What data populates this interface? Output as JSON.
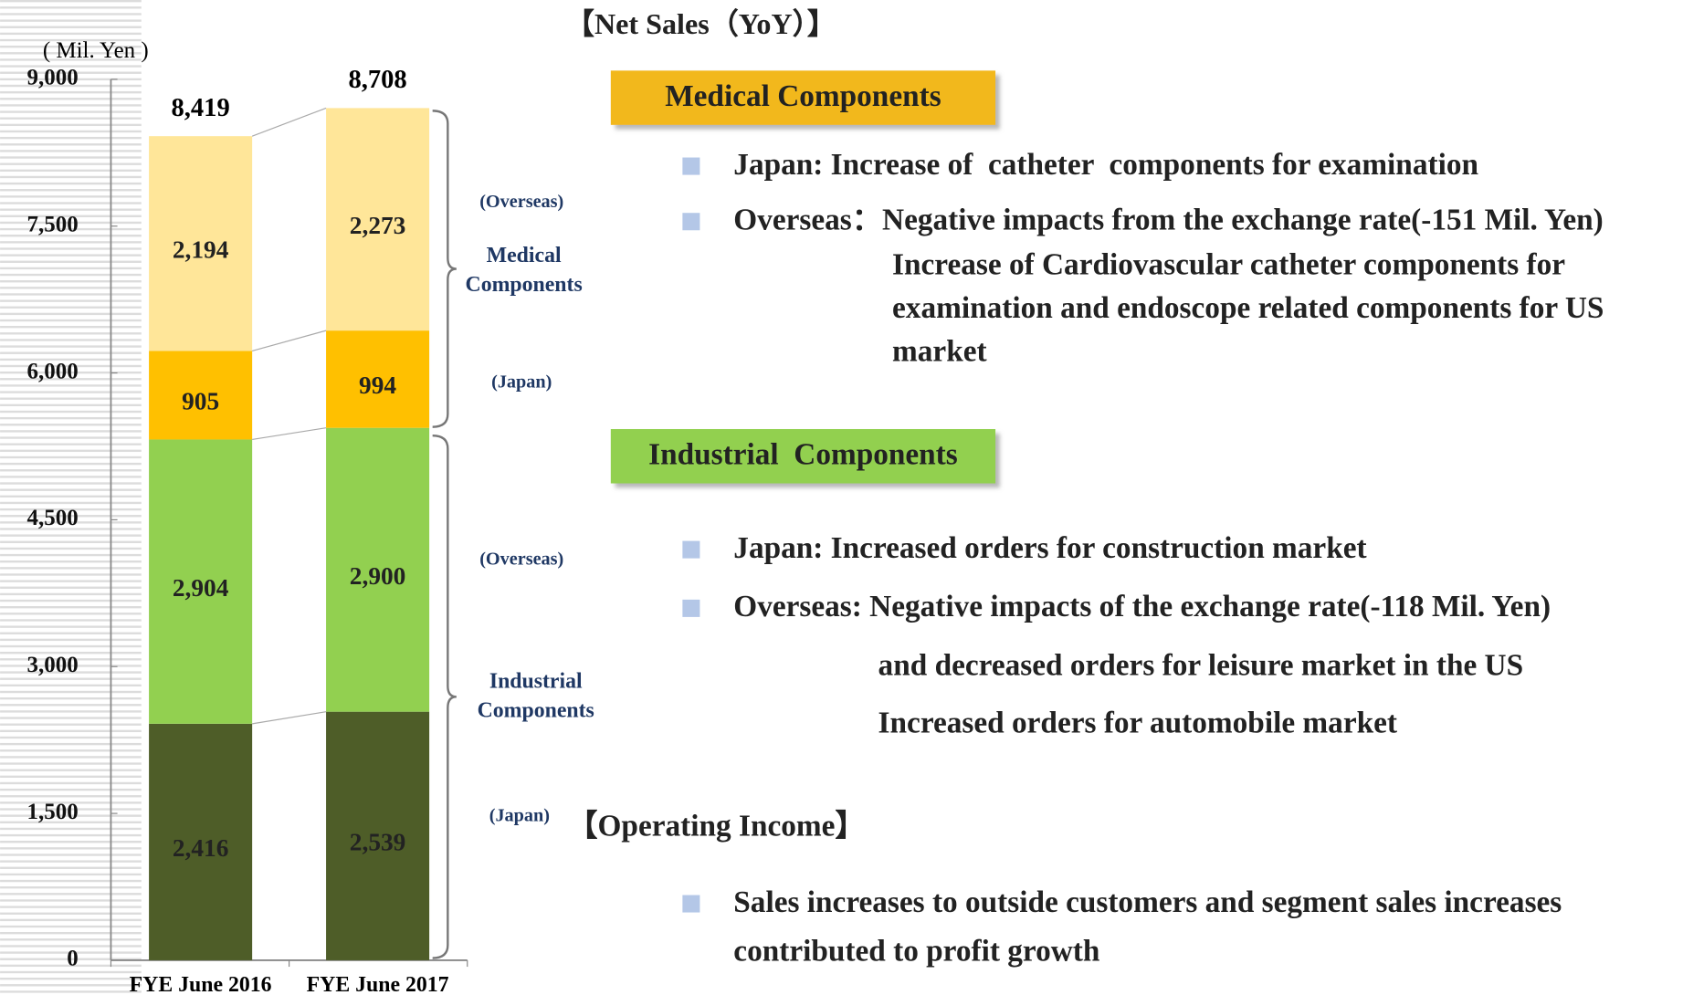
{
  "chart_data": {
    "type": "stacked-bar",
    "unit_label": "( Mil. Yen )",
    "categories": [
      "FYE June 2016",
      "FYE June 2017"
    ],
    "series": [
      {
        "name": "(Japan)",
        "color": "#4e5d28",
        "values": [
          2416,
          2539
        ],
        "value_labels": [
          "2,416",
          "2,539"
        ]
      },
      {
        "name": "(Overseas)",
        "color": "#92d050",
        "values": [
          2904,
          2900
        ],
        "value_labels": [
          "2,904",
          "2,900"
        ]
      },
      {
        "name": "(Japan)",
        "color": "#ffc000",
        "values": [
          905,
          994
        ],
        "value_labels": [
          "905",
          "994"
        ]
      },
      {
        "name": "(Overseas)",
        "color": "#ffe699",
        "values": [
          2194,
          2273
        ],
        "value_labels": [
          "2,194",
          "2,273"
        ]
      }
    ],
    "totals": {
      "values": [
        8419,
        8708
      ],
      "value_labels": [
        "8,419",
        "8,708"
      ]
    },
    "groups": [
      "Industrial Components",
      "Medical Components"
    ],
    "ylim": [
      0,
      9000
    ],
    "yticks": [
      0,
      {
        "value": 1500,
        "label": "1,500"
      },
      {
        "value": 3000,
        "label": "3,000"
      },
      {
        "value": 4500,
        "label": "4,500"
      },
      {
        "value": 6000,
        "label": "6,000"
      },
      {
        "value": 7500,
        "label": "7,500"
      },
      {
        "value": 9000,
        "label": "9,000"
      }
    ]
  },
  "notes": {
    "title": "【Net Sales（YoY）】",
    "sections": [
      {
        "heading": "Medical Components",
        "bullets": [
          [
            "Japan: Increase of  catheter  components for examination"
          ],
          [
            "Overseas：Negative impacts from the exchange rate(-151 Mil. Yen)",
            "Increase of Cardiovascular catheter components for",
            "examination and endoscope related components for US",
            "market"
          ]
        ]
      },
      {
        "heading": "Industrial  Components",
        "bullets": [
          [
            "Japan: Increased orders for construction market"
          ],
          [
            "Overseas: Negative impacts of the exchange rate(-118 Mil. Yen)",
            "and decreased orders for leisure market in the US",
            "Increased orders for automobile market"
          ]
        ]
      }
    ],
    "operating": {
      "title": "【Operating Income】",
      "bullets": [
        [
          "Sales increases to outside customers and segment sales increases",
          "contributed to profit growth"
        ]
      ]
    }
  }
}
